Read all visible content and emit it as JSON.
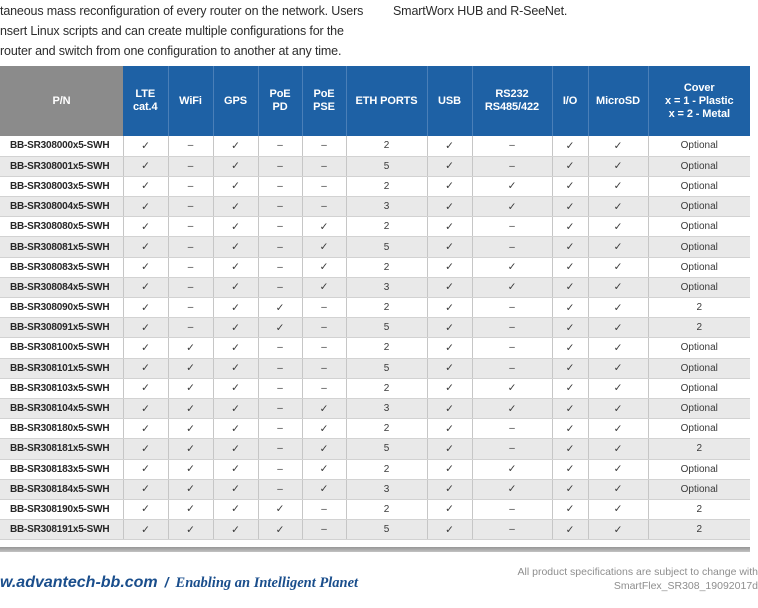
{
  "intro": {
    "left_lines": [
      "taneous mass reconfiguration of every router on the network. Users",
      "nsert Linux scripts and can create multiple configurations for the",
      "router and switch from one configuration to another at any time."
    ],
    "right_line": "SmartWorx HUB and R-SeeNet."
  },
  "table": {
    "columns": [
      {
        "label": "P/N"
      },
      {
        "label": "LTE\ncat.4"
      },
      {
        "label": "WiFi"
      },
      {
        "label": "GPS"
      },
      {
        "label": "PoE\nPD"
      },
      {
        "label": "PoE\nPSE"
      },
      {
        "label": "ETH PORTS"
      },
      {
        "label": "USB"
      },
      {
        "label": "RS232\nRS485/422"
      },
      {
        "label": "I/O"
      },
      {
        "label": "MicroSD"
      },
      {
        "label": "Cover\nx = 1 - Plastic\nx = 2 - Metal"
      }
    ],
    "rows": [
      {
        "pn": "BB-SR308000x5-SWH",
        "values": [
          "✓",
          "–",
          "✓",
          "–",
          "–",
          "2",
          "✓",
          "–",
          "✓",
          "✓",
          "Optional"
        ]
      },
      {
        "pn": "BB-SR308001x5-SWH",
        "values": [
          "✓",
          "–",
          "✓",
          "–",
          "–",
          "5",
          "✓",
          "–",
          "✓",
          "✓",
          "Optional"
        ]
      },
      {
        "pn": "BB-SR308003x5-SWH",
        "values": [
          "✓",
          "–",
          "✓",
          "–",
          "–",
          "2",
          "✓",
          "✓",
          "✓",
          "✓",
          "Optional"
        ]
      },
      {
        "pn": "BB-SR308004x5-SWH",
        "values": [
          "✓",
          "–",
          "✓",
          "–",
          "–",
          "3",
          "✓",
          "✓",
          "✓",
          "✓",
          "Optional"
        ]
      },
      {
        "pn": "BB-SR308080x5-SWH",
        "values": [
          "✓",
          "–",
          "✓",
          "–",
          "✓",
          "2",
          "✓",
          "–",
          "✓",
          "✓",
          "Optional"
        ]
      },
      {
        "pn": "BB-SR308081x5-SWH",
        "values": [
          "✓",
          "–",
          "✓",
          "–",
          "✓",
          "5",
          "✓",
          "–",
          "✓",
          "✓",
          "Optional"
        ]
      },
      {
        "pn": "BB-SR308083x5-SWH",
        "values": [
          "✓",
          "–",
          "✓",
          "–",
          "✓",
          "2",
          "✓",
          "✓",
          "✓",
          "✓",
          "Optional"
        ]
      },
      {
        "pn": "BB-SR308084x5-SWH",
        "values": [
          "✓",
          "–",
          "✓",
          "–",
          "✓",
          "3",
          "✓",
          "✓",
          "✓",
          "✓",
          "Optional"
        ]
      },
      {
        "pn": "BB-SR308090x5-SWH",
        "values": [
          "✓",
          "–",
          "✓",
          "✓",
          "–",
          "2",
          "✓",
          "–",
          "✓",
          "✓",
          "2"
        ]
      },
      {
        "pn": "BB-SR308091x5-SWH",
        "values": [
          "✓",
          "–",
          "✓",
          "✓",
          "–",
          "5",
          "✓",
          "–",
          "✓",
          "✓",
          "2"
        ]
      },
      {
        "pn": "BB-SR308100x5-SWH",
        "values": [
          "✓",
          "✓",
          "✓",
          "–",
          "–",
          "2",
          "✓",
          "–",
          "✓",
          "✓",
          "Optional"
        ]
      },
      {
        "pn": "BB-SR308101x5-SWH",
        "values": [
          "✓",
          "✓",
          "✓",
          "–",
          "–",
          "5",
          "✓",
          "–",
          "✓",
          "✓",
          "Optional"
        ]
      },
      {
        "pn": "BB-SR308103x5-SWH",
        "values": [
          "✓",
          "✓",
          "✓",
          "–",
          "–",
          "2",
          "✓",
          "✓",
          "✓",
          "✓",
          "Optional"
        ]
      },
      {
        "pn": "BB-SR308104x5-SWH",
        "values": [
          "✓",
          "✓",
          "✓",
          "–",
          "✓",
          "3",
          "✓",
          "✓",
          "✓",
          "✓",
          "Optional"
        ]
      },
      {
        "pn": "BB-SR308180x5-SWH",
        "values": [
          "✓",
          "✓",
          "✓",
          "–",
          "✓",
          "2",
          "✓",
          "–",
          "✓",
          "✓",
          "Optional"
        ]
      },
      {
        "pn": "BB-SR308181x5-SWH",
        "values": [
          "✓",
          "✓",
          "✓",
          "–",
          "✓",
          "5",
          "✓",
          "–",
          "✓",
          "✓",
          "2"
        ]
      },
      {
        "pn": "BB-SR308183x5-SWH",
        "values": [
          "✓",
          "✓",
          "✓",
          "–",
          "✓",
          "2",
          "✓",
          "✓",
          "✓",
          "✓",
          "Optional"
        ]
      },
      {
        "pn": "BB-SR308184x5-SWH",
        "values": [
          "✓",
          "✓",
          "✓",
          "–",
          "✓",
          "3",
          "✓",
          "✓",
          "✓",
          "✓",
          "Optional"
        ]
      },
      {
        "pn": "BB-SR308190x5-SWH",
        "values": [
          "✓",
          "✓",
          "✓",
          "✓",
          "–",
          "2",
          "✓",
          "–",
          "✓",
          "✓",
          "2"
        ]
      },
      {
        "pn": "BB-SR308191x5-SWH",
        "values": [
          "✓",
          "✓",
          "✓",
          "✓",
          "–",
          "5",
          "✓",
          "–",
          "✓",
          "✓",
          "2"
        ]
      }
    ]
  },
  "footer": {
    "website": "w.advantech-bb.com",
    "separator": "/",
    "tagline": "Enabling an Intelligent Planet",
    "note_line1": "All product specifications are subject to change with",
    "note_line2": "SmartFlex_SR308_19092017d"
  },
  "colors": {
    "header_blue": "#1e61a5",
    "header_gray": "#8b8b8b",
    "row_alt_gray": "#e9e9e9",
    "footer_blue": "#1a4e8c",
    "note_gray": "#8e8e8e"
  }
}
